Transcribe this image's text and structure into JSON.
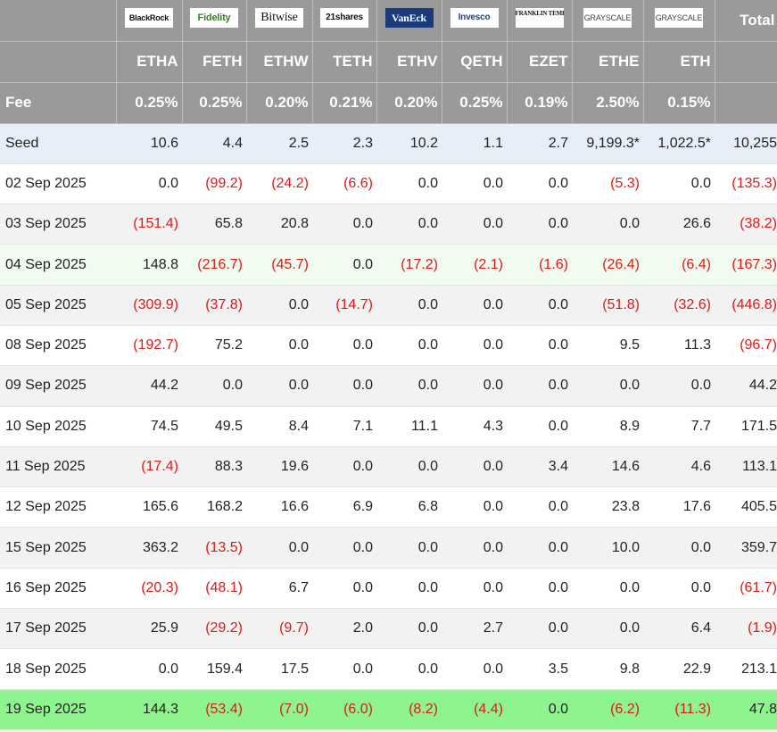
{
  "header": {
    "logos": [
      "BlackRock",
      "Fidelity",
      "Bitwise",
      "21shares",
      "VanEck",
      "Invesco",
      "FRANKLIN TEMPLETON",
      "GRAYSCALE",
      "GRAYSCALE"
    ],
    "total_label": "Total",
    "tickers": [
      "ETHA",
      "FETH",
      "ETHW",
      "TETH",
      "ETHV",
      "QETH",
      "EZET",
      "ETHE",
      "ETH"
    ],
    "fee_label": "Fee",
    "fees": [
      "0.25%",
      "0.25%",
      "0.20%",
      "0.21%",
      "0.20%",
      "0.25%",
      "0.19%",
      "2.50%",
      "0.15%"
    ]
  },
  "rows": [
    {
      "label": "Seed",
      "style": "seed",
      "values": [
        "10.6",
        "4.4",
        "2.5",
        "2.3",
        "10.2",
        "1.1",
        "2.7",
        "9,199.3*",
        "1,022.5*",
        "10,255"
      ]
    },
    {
      "label": "02 Sep 2025",
      "style": "white",
      "values": [
        "0.0",
        "(99.2)",
        "(24.2)",
        "(6.6)",
        "0.0",
        "0.0",
        "0.0",
        "(5.3)",
        "0.0",
        "(135.3)"
      ]
    },
    {
      "label": "03 Sep 2025",
      "style": "gray",
      "values": [
        "(151.4)",
        "65.8",
        "20.8",
        "0.0",
        "0.0",
        "0.0",
        "0.0",
        "0.0",
        "26.6",
        "(38.2)"
      ]
    },
    {
      "label": "04 Sep 2025",
      "style": "mint",
      "values": [
        "148.8",
        "(216.7)",
        "(45.7)",
        "0.0",
        "(17.2)",
        "(2.1)",
        "(1.6)",
        "(26.4)",
        "(6.4)",
        "(167.3)"
      ]
    },
    {
      "label": "05 Sep 2025",
      "style": "gray",
      "values": [
        "(309.9)",
        "(37.8)",
        "0.0",
        "(14.7)",
        "0.0",
        "0.0",
        "0.0",
        "(51.8)",
        "(32.6)",
        "(446.8)"
      ]
    },
    {
      "label": "08 Sep 2025",
      "style": "white",
      "values": [
        "(192.7)",
        "75.2",
        "0.0",
        "0.0",
        "0.0",
        "0.0",
        "0.0",
        "9.5",
        "11.3",
        "(96.7)"
      ]
    },
    {
      "label": "09 Sep 2025",
      "style": "gray",
      "values": [
        "44.2",
        "0.0",
        "0.0",
        "0.0",
        "0.0",
        "0.0",
        "0.0",
        "0.0",
        "0.0",
        "44.2"
      ]
    },
    {
      "label": "10 Sep 2025",
      "style": "white",
      "values": [
        "74.5",
        "49.5",
        "8.4",
        "7.1",
        "11.1",
        "4.3",
        "0.0",
        "8.9",
        "7.7",
        "171.5"
      ]
    },
    {
      "label": "11 Sep 2025",
      "style": "gray",
      "values": [
        "(17.4)",
        "88.3",
        "19.6",
        "0.0",
        "0.0",
        "0.0",
        "3.4",
        "14.6",
        "4.6",
        "113.1"
      ]
    },
    {
      "label": "12 Sep 2025",
      "style": "white",
      "values": [
        "165.6",
        "168.2",
        "16.6",
        "6.9",
        "6.8",
        "0.0",
        "0.0",
        "23.8",
        "17.6",
        "405.5"
      ]
    },
    {
      "label": "15 Sep 2025",
      "style": "gray",
      "values": [
        "363.2",
        "(13.5)",
        "0.0",
        "0.0",
        "0.0",
        "0.0",
        "0.0",
        "10.0",
        "0.0",
        "359.7"
      ]
    },
    {
      "label": "16 Sep 2025",
      "style": "white",
      "values": [
        "(20.3)",
        "(48.1)",
        "6.7",
        "0.0",
        "0.0",
        "0.0",
        "0.0",
        "0.0",
        "0.0",
        "(61.7)"
      ]
    },
    {
      "label": "17 Sep 2025",
      "style": "gray",
      "values": [
        "25.9",
        "(29.2)",
        "(9.7)",
        "2.0",
        "0.0",
        "2.7",
        "0.0",
        "0.0",
        "6.4",
        "(1.9)"
      ]
    },
    {
      "label": "18 Sep 2025",
      "style": "white",
      "values": [
        "0.0",
        "159.4",
        "17.5",
        "0.0",
        "0.0",
        "0.0",
        "3.5",
        "9.8",
        "22.9",
        "213.1"
      ]
    },
    {
      "label": "19 Sep 2025",
      "style": "green",
      "values": [
        "144.3",
        "(53.4)",
        "(7.0)",
        "(6.0)",
        "(8.2)",
        "(4.4)",
        "0.0",
        "(6.2)",
        "(11.3)",
        "47.8"
      ]
    }
  ],
  "colors": {
    "header_bg": "#9a9a9a",
    "negative": "#e01818",
    "seed_row": "#e8eef8",
    "highlight_row": "#effcef",
    "latest_row": "#8ef58e",
    "alt_row": "#f2f2f2"
  }
}
